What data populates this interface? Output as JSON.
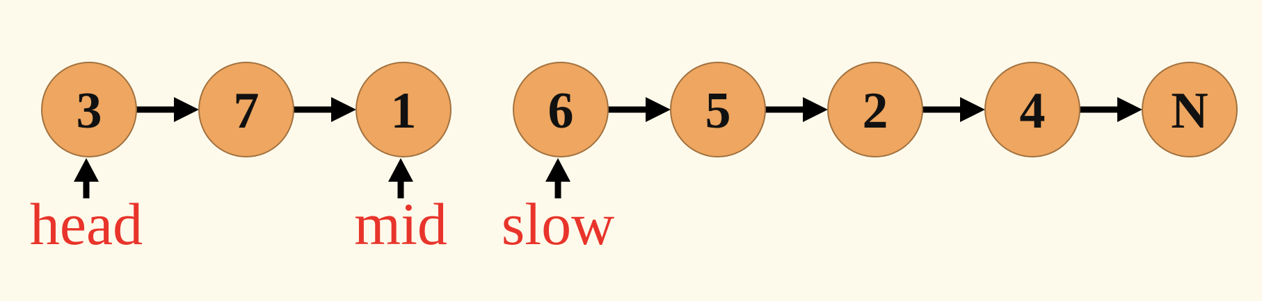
{
  "linked_list": {
    "nodes": [
      {
        "value": "3"
      },
      {
        "value": "7"
      },
      {
        "value": "1"
      },
      {
        "value": "6"
      },
      {
        "value": "5"
      },
      {
        "value": "2"
      },
      {
        "value": "4"
      },
      {
        "value": "N"
      }
    ],
    "links": [
      {
        "from": 0,
        "to": 1
      },
      {
        "from": 1,
        "to": 2
      },
      {
        "from": 3,
        "to": 4
      },
      {
        "from": 4,
        "to": 5
      },
      {
        "from": 5,
        "to": 6
      },
      {
        "from": 6,
        "to": 7
      }
    ],
    "pointers": [
      {
        "label": "head",
        "node": 0
      },
      {
        "label": "mid",
        "node": 2
      },
      {
        "label": "slow",
        "node": 3
      }
    ]
  },
  "colors": {
    "background": "#fefaeb",
    "node_fill": "#eea660",
    "node_stroke": "#a1713f",
    "pointer_label": "#e8342b",
    "arrow": "#000000"
  }
}
